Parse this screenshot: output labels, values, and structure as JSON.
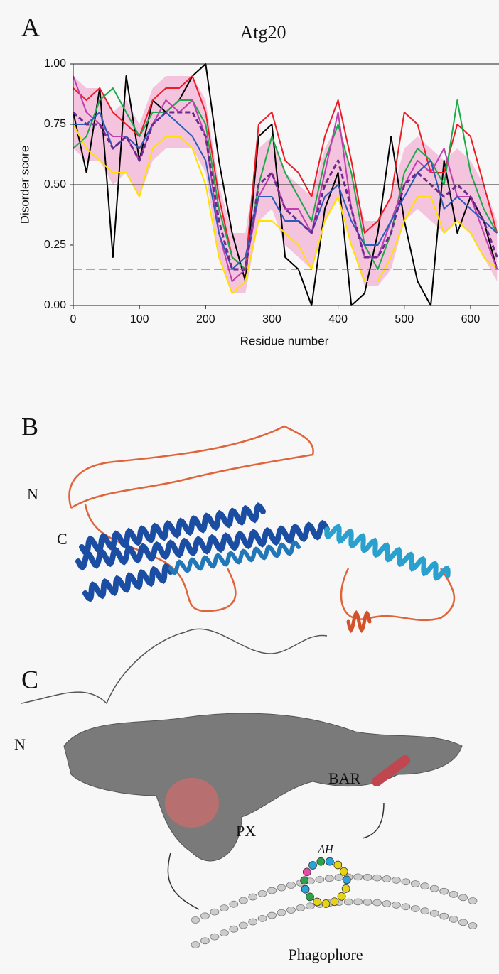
{
  "chart_data": {
    "type": "line",
    "title": "Atg20",
    "xlabel": "Residue number",
    "ylabel": "Disorder score",
    "x": [
      0,
      20,
      40,
      60,
      80,
      100,
      120,
      140,
      160,
      180,
      200,
      220,
      240,
      260,
      280,
      300,
      320,
      340,
      360,
      380,
      400,
      420,
      440,
      460,
      480,
      500,
      520,
      540,
      560,
      580,
      600,
      620,
      640
    ],
    "xlim": [
      0,
      643
    ],
    "ylim": [
      0,
      1
    ],
    "xticks": [
      0,
      100,
      200,
      300,
      400,
      500,
      600
    ],
    "yticks": [
      {
        "value": 0,
        "label": "0.00"
      },
      {
        "value": 0.25,
        "label": "0.25"
      },
      {
        "value": 0.5,
        "label": "0.50"
      },
      {
        "value": 0.75,
        "label": "0.75"
      },
      {
        "value": 1,
        "label": "1.00"
      }
    ],
    "hlines": [
      {
        "value": 1,
        "style": "solid"
      },
      {
        "value": 0.5,
        "style": "solid"
      },
      {
        "value": 0.15,
        "style": "dashed"
      }
    ],
    "band": {
      "color": "#f2b6d8",
      "lower": [
        0.65,
        0.6,
        0.6,
        0.5,
        0.55,
        0.45,
        0.6,
        0.65,
        0.65,
        0.65,
        0.55,
        0.2,
        0.05,
        0.05,
        0.35,
        0.4,
        0.25,
        0.2,
        0.15,
        0.35,
        0.45,
        0.25,
        0.08,
        0.08,
        0.15,
        0.35,
        0.4,
        0.35,
        0.3,
        0.35,
        0.3,
        0.2,
        0.1
      ],
      "upper": [
        0.95,
        0.9,
        0.9,
        0.8,
        0.85,
        0.75,
        0.9,
        0.95,
        0.95,
        0.95,
        0.85,
        0.5,
        0.3,
        0.3,
        0.65,
        0.7,
        0.55,
        0.5,
        0.45,
        0.65,
        0.75,
        0.55,
        0.35,
        0.35,
        0.45,
        0.65,
        0.7,
        0.65,
        0.6,
        0.65,
        0.6,
        0.5,
        0.35
      ]
    },
    "series": [
      {
        "color": "#000000",
        "values": [
          0.8,
          0.55,
          0.9,
          0.2,
          0.95,
          0.6,
          0.85,
          0.8,
          0.85,
          0.95,
          1.0,
          0.6,
          0.3,
          0.1,
          0.7,
          0.75,
          0.2,
          0.15,
          0.0,
          0.4,
          0.55,
          0.0,
          0.05,
          0.3,
          0.7,
          0.35,
          0.1,
          0.0,
          0.6,
          0.3,
          0.45,
          0.35,
          0.15
        ]
      },
      {
        "color": "#ee1c25",
        "values": [
          0.9,
          0.85,
          0.9,
          0.8,
          0.75,
          0.7,
          0.85,
          0.9,
          0.9,
          0.95,
          0.8,
          0.45,
          0.2,
          0.15,
          0.75,
          0.8,
          0.6,
          0.55,
          0.45,
          0.7,
          0.85,
          0.6,
          0.3,
          0.35,
          0.45,
          0.8,
          0.75,
          0.55,
          0.55,
          0.75,
          0.7,
          0.5,
          0.3
        ]
      },
      {
        "color": "#1fa84a",
        "values": [
          0.65,
          0.7,
          0.85,
          0.9,
          0.8,
          0.7,
          0.8,
          0.8,
          0.85,
          0.85,
          0.75,
          0.4,
          0.2,
          0.15,
          0.5,
          0.7,
          0.55,
          0.45,
          0.35,
          0.6,
          0.75,
          0.55,
          0.25,
          0.15,
          0.3,
          0.55,
          0.65,
          0.6,
          0.5,
          0.85,
          0.55,
          0.4,
          0.3
        ]
      },
      {
        "color": "#ffe000",
        "values": [
          0.75,
          0.65,
          0.6,
          0.55,
          0.55,
          0.45,
          0.65,
          0.7,
          0.7,
          0.65,
          0.5,
          0.2,
          0.05,
          0.1,
          0.35,
          0.35,
          0.3,
          0.25,
          0.15,
          0.35,
          0.45,
          0.25,
          0.1,
          0.1,
          0.2,
          0.35,
          0.45,
          0.45,
          0.3,
          0.35,
          0.3,
          0.2,
          0.15
        ]
      },
      {
        "color": "#c03fb0",
        "values": [
          0.95,
          0.8,
          0.75,
          0.7,
          0.7,
          0.6,
          0.75,
          0.85,
          0.8,
          0.85,
          0.7,
          0.3,
          0.1,
          0.15,
          0.45,
          0.55,
          0.4,
          0.4,
          0.3,
          0.55,
          0.8,
          0.4,
          0.2,
          0.2,
          0.35,
          0.5,
          0.6,
          0.55,
          0.65,
          0.45,
          0.45,
          0.3,
          0.15
        ]
      },
      {
        "color": "#2a5cb8",
        "values": [
          0.75,
          0.75,
          0.8,
          0.65,
          0.7,
          0.65,
          0.75,
          0.8,
          0.75,
          0.7,
          0.6,
          0.3,
          0.15,
          0.2,
          0.45,
          0.45,
          0.35,
          0.35,
          0.3,
          0.45,
          0.5,
          0.35,
          0.25,
          0.25,
          0.35,
          0.45,
          0.55,
          0.6,
          0.4,
          0.45,
          0.4,
          0.35,
          0.3
        ]
      },
      {
        "color": "#6b2a8c",
        "dashed": true,
        "values": [
          0.8,
          0.75,
          0.75,
          0.65,
          0.7,
          0.6,
          0.75,
          0.8,
          0.8,
          0.8,
          0.7,
          0.35,
          0.15,
          0.15,
          0.5,
          0.55,
          0.4,
          0.35,
          0.3,
          0.5,
          0.6,
          0.4,
          0.2,
          0.2,
          0.3,
          0.5,
          0.55,
          0.5,
          0.45,
          0.5,
          0.45,
          0.35,
          0.2
        ]
      }
    ]
  },
  "panel_labels": [
    "A",
    "B",
    "C"
  ],
  "structure_b": {
    "n_terminus": "N",
    "c_terminus": "C"
  },
  "structure_c": {
    "n_terminus": "N",
    "bar": "BAR",
    "px": "PX",
    "ah": "AH",
    "membrane": "Phagophore"
  }
}
